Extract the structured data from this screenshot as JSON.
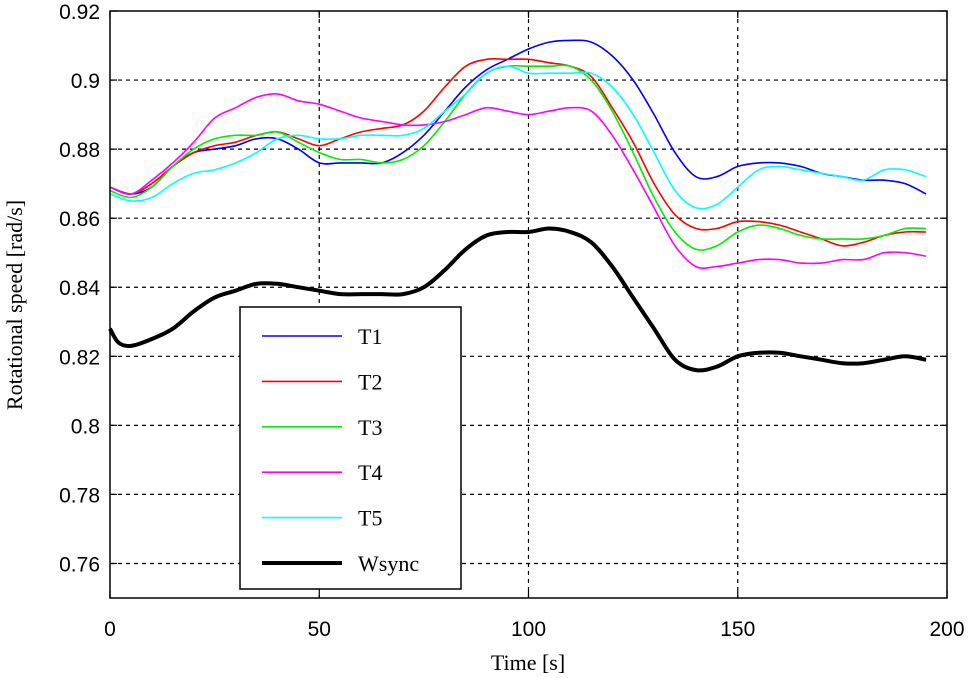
{
  "chart_data": {
    "type": "line",
    "title": "",
    "xlabel": "Time [s]",
    "ylabel": "Rotational speed [rad/s]",
    "xlim": [
      0,
      200
    ],
    "ylim": [
      0.75,
      0.92
    ],
    "xticks": [
      0,
      50,
      100,
      150,
      200
    ],
    "yticks": [
      0.76,
      0.78,
      0.8,
      0.82,
      0.84,
      0.86,
      0.88,
      0.9,
      0.92
    ],
    "xtick_labels": [
      "0",
      "50",
      "100",
      "150",
      "200"
    ],
    "ytick_labels": [
      "0.76",
      "0.78",
      "0.8",
      "0.82",
      "0.84",
      "0.86",
      "0.88",
      "0.9",
      "0.92"
    ],
    "grid": true,
    "legend_position": "lower-left",
    "series": [
      {
        "name": "T1",
        "color": "#0000ff",
        "points": [
          [
            0,
            0.869
          ],
          [
            5,
            0.867
          ],
          [
            10,
            0.869
          ],
          [
            15,
            0.875
          ],
          [
            20,
            0.879
          ],
          [
            25,
            0.88
          ],
          [
            30,
            0.881
          ],
          [
            35,
            0.883
          ],
          [
            40,
            0.883
          ],
          [
            45,
            0.88
          ],
          [
            50,
            0.876
          ],
          [
            55,
            0.876
          ],
          [
            60,
            0.876
          ],
          [
            65,
            0.876
          ],
          [
            70,
            0.879
          ],
          [
            75,
            0.884
          ],
          [
            80,
            0.891
          ],
          [
            85,
            0.898
          ],
          [
            90,
            0.903
          ],
          [
            95,
            0.906
          ],
          [
            100,
            0.909
          ],
          [
            105,
            0.911
          ],
          [
            110,
            0.9115
          ],
          [
            115,
            0.911
          ],
          [
            120,
            0.907
          ],
          [
            125,
            0.9
          ],
          [
            130,
            0.89
          ],
          [
            135,
            0.879
          ],
          [
            140,
            0.872
          ],
          [
            145,
            0.872
          ],
          [
            150,
            0.875
          ],
          [
            155,
            0.876
          ],
          [
            160,
            0.876
          ],
          [
            165,
            0.875
          ],
          [
            170,
            0.873
          ],
          [
            175,
            0.872
          ],
          [
            180,
            0.871
          ],
          [
            185,
            0.871
          ],
          [
            190,
            0.87
          ],
          [
            195,
            0.867
          ]
        ]
      },
      {
        "name": "T2",
        "color": "#ff0000",
        "points": [
          [
            0,
            0.869
          ],
          [
            5,
            0.867
          ],
          [
            10,
            0.87
          ],
          [
            15,
            0.875
          ],
          [
            20,
            0.879
          ],
          [
            25,
            0.881
          ],
          [
            30,
            0.882
          ],
          [
            35,
            0.884
          ],
          [
            40,
            0.885
          ],
          [
            45,
            0.883
          ],
          [
            50,
            0.881
          ],
          [
            55,
            0.883
          ],
          [
            60,
            0.885
          ],
          [
            65,
            0.886
          ],
          [
            70,
            0.887
          ],
          [
            75,
            0.891
          ],
          [
            80,
            0.898
          ],
          [
            85,
            0.904
          ],
          [
            90,
            0.906
          ],
          [
            95,
            0.906
          ],
          [
            100,
            0.906
          ],
          [
            105,
            0.905
          ],
          [
            110,
            0.904
          ],
          [
            115,
            0.901
          ],
          [
            120,
            0.892
          ],
          [
            125,
            0.882
          ],
          [
            130,
            0.87
          ],
          [
            135,
            0.861
          ],
          [
            140,
            0.857
          ],
          [
            145,
            0.857
          ],
          [
            150,
            0.859
          ],
          [
            155,
            0.859
          ],
          [
            160,
            0.858
          ],
          [
            165,
            0.856
          ],
          [
            170,
            0.854
          ],
          [
            175,
            0.852
          ],
          [
            180,
            0.853
          ],
          [
            185,
            0.855
          ],
          [
            190,
            0.856
          ],
          [
            195,
            0.856
          ]
        ]
      },
      {
        "name": "T3",
        "color": "#00ee00",
        "points": [
          [
            0,
            0.868
          ],
          [
            5,
            0.866
          ],
          [
            10,
            0.869
          ],
          [
            15,
            0.875
          ],
          [
            20,
            0.88
          ],
          [
            25,
            0.883
          ],
          [
            30,
            0.884
          ],
          [
            35,
            0.884
          ],
          [
            40,
            0.885
          ],
          [
            45,
            0.882
          ],
          [
            50,
            0.879
          ],
          [
            55,
            0.877
          ],
          [
            60,
            0.877
          ],
          [
            65,
            0.876
          ],
          [
            70,
            0.877
          ],
          [
            75,
            0.881
          ],
          [
            80,
            0.888
          ],
          [
            85,
            0.896
          ],
          [
            90,
            0.902
          ],
          [
            95,
            0.904
          ],
          [
            100,
            0.904
          ],
          [
            105,
            0.904
          ],
          [
            110,
            0.904
          ],
          [
            115,
            0.9
          ],
          [
            120,
            0.891
          ],
          [
            125,
            0.879
          ],
          [
            130,
            0.866
          ],
          [
            135,
            0.856
          ],
          [
            140,
            0.851
          ],
          [
            145,
            0.852
          ],
          [
            150,
            0.856
          ],
          [
            155,
            0.858
          ],
          [
            160,
            0.857
          ],
          [
            165,
            0.855
          ],
          [
            170,
            0.854
          ],
          [
            175,
            0.854
          ],
          [
            180,
            0.854
          ],
          [
            185,
            0.855
          ],
          [
            190,
            0.857
          ],
          [
            195,
            0.857
          ]
        ]
      },
      {
        "name": "T4",
        "color": "#ff00ff",
        "points": [
          [
            0,
            0.869
          ],
          [
            5,
            0.867
          ],
          [
            10,
            0.871
          ],
          [
            15,
            0.876
          ],
          [
            20,
            0.882
          ],
          [
            25,
            0.889
          ],
          [
            30,
            0.892
          ],
          [
            35,
            0.895
          ],
          [
            40,
            0.896
          ],
          [
            45,
            0.894
          ],
          [
            50,
            0.893
          ],
          [
            55,
            0.891
          ],
          [
            60,
            0.889
          ],
          [
            65,
            0.888
          ],
          [
            70,
            0.887
          ],
          [
            75,
            0.887
          ],
          [
            80,
            0.888
          ],
          [
            85,
            0.89
          ],
          [
            90,
            0.892
          ],
          [
            95,
            0.891
          ],
          [
            100,
            0.89
          ],
          [
            105,
            0.891
          ],
          [
            110,
            0.892
          ],
          [
            115,
            0.891
          ],
          [
            120,
            0.884
          ],
          [
            125,
            0.874
          ],
          [
            130,
            0.863
          ],
          [
            135,
            0.852
          ],
          [
            140,
            0.846
          ],
          [
            145,
            0.846
          ],
          [
            150,
            0.847
          ],
          [
            155,
            0.848
          ],
          [
            160,
            0.848
          ],
          [
            165,
            0.847
          ],
          [
            170,
            0.847
          ],
          [
            175,
            0.848
          ],
          [
            180,
            0.848
          ],
          [
            185,
            0.85
          ],
          [
            190,
            0.85
          ],
          [
            195,
            0.849
          ]
        ]
      },
      {
        "name": "T5",
        "color": "#00ffff",
        "points": [
          [
            0,
            0.867
          ],
          [
            5,
            0.865
          ],
          [
            10,
            0.866
          ],
          [
            15,
            0.87
          ],
          [
            20,
            0.873
          ],
          [
            25,
            0.874
          ],
          [
            30,
            0.876
          ],
          [
            35,
            0.879
          ],
          [
            40,
            0.883
          ],
          [
            45,
            0.884
          ],
          [
            50,
            0.883
          ],
          [
            55,
            0.883
          ],
          [
            60,
            0.884
          ],
          [
            65,
            0.884
          ],
          [
            70,
            0.884
          ],
          [
            75,
            0.886
          ],
          [
            80,
            0.891
          ],
          [
            85,
            0.896
          ],
          [
            90,
            0.902
          ],
          [
            95,
            0.904
          ],
          [
            100,
            0.902
          ],
          [
            105,
            0.902
          ],
          [
            110,
            0.902
          ],
          [
            115,
            0.902
          ],
          [
            120,
            0.898
          ],
          [
            125,
            0.89
          ],
          [
            130,
            0.879
          ],
          [
            135,
            0.868
          ],
          [
            140,
            0.863
          ],
          [
            145,
            0.864
          ],
          [
            150,
            0.869
          ],
          [
            155,
            0.874
          ],
          [
            160,
            0.875
          ],
          [
            165,
            0.874
          ],
          [
            170,
            0.873
          ],
          [
            175,
            0.872
          ],
          [
            180,
            0.871
          ],
          [
            185,
            0.874
          ],
          [
            190,
            0.874
          ],
          [
            195,
            0.872
          ]
        ]
      },
      {
        "name": "Wsync",
        "color": "#000000",
        "points": [
          [
            0,
            0.828
          ],
          [
            2,
            0.824
          ],
          [
            5,
            0.823
          ],
          [
            10,
            0.825
          ],
          [
            15,
            0.828
          ],
          [
            20,
            0.833
          ],
          [
            25,
            0.837
          ],
          [
            30,
            0.839
          ],
          [
            35,
            0.841
          ],
          [
            40,
            0.841
          ],
          [
            45,
            0.84
          ],
          [
            50,
            0.839
          ],
          [
            55,
            0.838
          ],
          [
            60,
            0.838
          ],
          [
            65,
            0.838
          ],
          [
            70,
            0.838
          ],
          [
            75,
            0.84
          ],
          [
            80,
            0.845
          ],
          [
            85,
            0.851
          ],
          [
            90,
            0.855
          ],
          [
            95,
            0.856
          ],
          [
            100,
            0.856
          ],
          [
            105,
            0.857
          ],
          [
            110,
            0.856
          ],
          [
            115,
            0.853
          ],
          [
            120,
            0.846
          ],
          [
            125,
            0.837
          ],
          [
            130,
            0.828
          ],
          [
            135,
            0.819
          ],
          [
            140,
            0.816
          ],
          [
            145,
            0.817
          ],
          [
            150,
            0.82
          ],
          [
            155,
            0.821
          ],
          [
            160,
            0.821
          ],
          [
            165,
            0.82
          ],
          [
            170,
            0.819
          ],
          [
            175,
            0.818
          ],
          [
            180,
            0.818
          ],
          [
            185,
            0.819
          ],
          [
            190,
            0.82
          ],
          [
            195,
            0.819
          ]
        ]
      }
    ]
  }
}
